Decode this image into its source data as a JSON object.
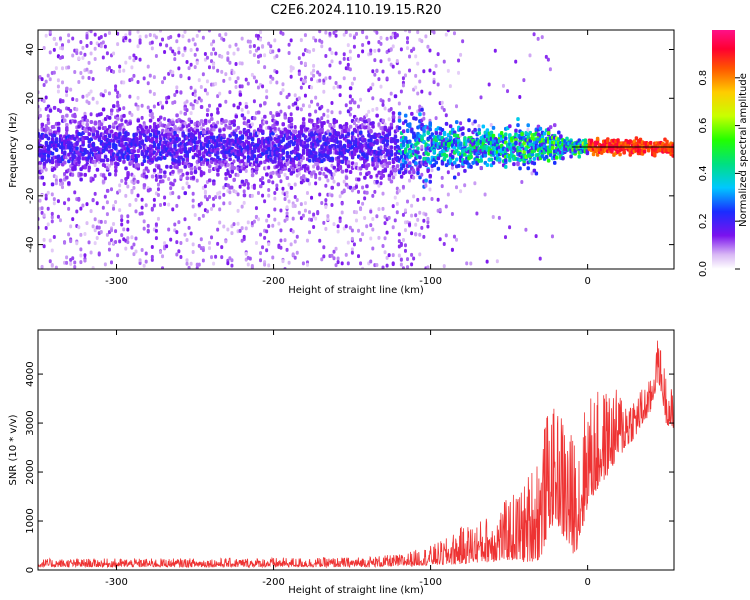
{
  "title": "C2E6.2024.110.19.15.R20",
  "chart_data": [
    {
      "type": "heatmap",
      "xlabel": "Height of straight line (km)",
      "ylabel": "Frequency (Hz)",
      "xlim": [
        -350,
        55
      ],
      "ylim": [
        -50,
        48
      ],
      "xticks": [
        -300,
        -200,
        -100,
        0
      ],
      "yticks": [
        -40,
        -20,
        0,
        20,
        40
      ],
      "xtick_labels": [
        "-300",
        "-200",
        "-100",
        "0"
      ],
      "ytick_labels": [
        "-40",
        "-20",
        "0",
        "20",
        "40"
      ],
      "colorbar": {
        "label": "Normalized spectral amplitude",
        "range": [
          0,
          1
        ],
        "ticks": [
          0.0,
          0.2,
          0.4,
          0.6,
          0.8
        ],
        "tick_labels": [
          "0.0",
          "0.2",
          "0.4",
          "0.6",
          "0.8"
        ],
        "colormap": "rainbow (white-violet-blue-cyan-green-yellow-red-magenta)"
      },
      "line": {
        "x": [
          -10,
          55
        ],
        "y": [
          0,
          0
        ],
        "color": "#000000"
      }
    },
    {
      "type": "line",
      "xlabel": "Height of straight line (km)",
      "ylabel": "SNR (10 * v/v)",
      "xlim": [
        -350,
        55
      ],
      "ylim": [
        0,
        4900
      ],
      "xticks": [
        -300,
        -200,
        -100,
        0
      ],
      "yticks": [
        0,
        1000,
        2000,
        3000,
        4000
      ],
      "xtick_labels": [
        "-300",
        "-200",
        "-100",
        "0"
      ],
      "ytick_labels": [
        "0",
        "1000",
        "2000",
        "3000",
        "4000"
      ],
      "series_color": "#ee3333",
      "envelope": {
        "x": [
          -350,
          -250,
          -150,
          -120,
          -100,
          -90,
          -80,
          -70,
          -60,
          -50,
          -40,
          -30,
          -25,
          -20,
          -15,
          -10,
          -5,
          0,
          10,
          20,
          30,
          40,
          45,
          50,
          55
        ],
        "y_low": [
          60,
          60,
          60,
          70,
          100,
          100,
          120,
          150,
          160,
          200,
          150,
          200,
          800,
          1000,
          600,
          300,
          500,
          1300,
          1800,
          2300,
          2700,
          3200,
          3900,
          3000,
          2800
        ],
        "y_high": [
          230,
          240,
          260,
          320,
          500,
          650,
          900,
          1000,
          1200,
          1500,
          1800,
          2700,
          3300,
          3300,
          3300,
          2800,
          3000,
          3600,
          3700,
          3700,
          3600,
          3900,
          4800,
          4000,
          3600
        ]
      }
    }
  ]
}
